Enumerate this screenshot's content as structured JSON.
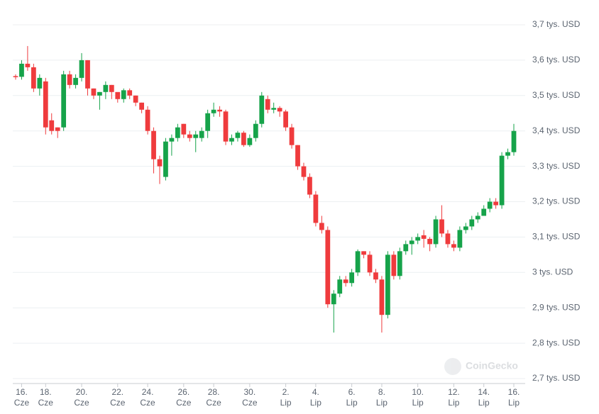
{
  "chart_data": {
    "type": "candlestick",
    "categories": [
      null,
      "16. Cze",
      null,
      null,
      null,
      "18. Cze",
      null,
      null,
      null,
      null,
      null,
      "20. Cze",
      null,
      null,
      null,
      null,
      null,
      "22. Cze",
      null,
      null,
      null,
      null,
      "24. Cze",
      null,
      null,
      null,
      null,
      null,
      "26. Cze",
      null,
      null,
      null,
      null,
      "28. Cze",
      null,
      null,
      null,
      null,
      null,
      "30. Cze",
      null,
      null,
      null,
      null,
      null,
      "2. Lip",
      null,
      null,
      null,
      null,
      "4. Lip",
      null,
      null,
      null,
      null,
      null,
      "6. Lip",
      null,
      null,
      null,
      null,
      "8. Lip",
      null,
      null,
      null,
      null,
      null,
      "10. Lip",
      null,
      null,
      null,
      null,
      null,
      "12. Lip",
      null,
      null,
      null,
      null,
      "14. Lip",
      null,
      null,
      null,
      null,
      "16. Lip"
    ],
    "open": [
      3.555,
      3.553,
      3.59,
      3.58,
      3.52,
      3.54,
      3.43,
      3.41,
      3.41,
      3.56,
      3.53,
      3.55,
      3.6,
      3.52,
      3.5,
      3.51,
      3.53,
      3.51,
      3.49,
      3.515,
      3.5,
      3.48,
      3.46,
      3.4,
      3.32,
      3.27,
      3.37,
      3.38,
      3.42,
      3.39,
      3.38,
      3.38,
      3.4,
      3.45,
      3.46,
      3.455,
      3.37,
      3.38,
      3.395,
      3.36,
      3.38,
      3.42,
      3.49,
      3.46,
      3.465,
      3.455,
      3.41,
      3.36,
      3.3,
      3.27,
      3.22,
      3.14,
      3.12,
      2.91,
      2.94,
      2.98,
      2.97,
      3.0,
      3.06,
      3.05,
      3.0,
      2.98,
      2.88,
      3.05,
      2.99,
      3.06,
      3.08,
      3.09,
      3.105,
      3.095,
      3.08,
      3.15,
      3.11,
      3.08,
      3.07,
      3.12,
      3.13,
      3.15,
      3.16,
      3.18,
      3.2,
      3.19,
      3.33,
      3.34
    ],
    "high": [
      3.56,
      3.6,
      3.64,
      3.59,
      3.56,
      3.55,
      3.45,
      3.41,
      3.57,
      3.57,
      3.56,
      3.62,
      3.6,
      3.52,
      3.51,
      3.54,
      3.53,
      3.5,
      3.52,
      3.52,
      3.5,
      3.48,
      3.47,
      3.41,
      3.33,
      3.38,
      3.39,
      3.42,
      3.42,
      3.4,
      3.4,
      3.41,
      3.46,
      3.48,
      3.47,
      3.46,
      3.39,
      3.4,
      3.4,
      3.39,
      3.43,
      3.51,
      3.5,
      3.48,
      3.47,
      3.46,
      3.42,
      3.36,
      3.31,
      3.28,
      3.23,
      3.16,
      3.13,
      2.95,
      2.99,
      2.99,
      3.01,
      3.065,
      3.06,
      3.06,
      3.01,
      2.99,
      3.06,
      3.06,
      3.07,
      3.09,
      3.1,
      3.11,
      3.12,
      3.1,
      3.16,
      3.19,
      3.12,
      3.09,
      3.13,
      3.14,
      3.16,
      3.17,
      3.19,
      3.21,
      3.21,
      3.34,
      3.35,
      3.42
    ],
    "low": [
      3.545,
      3.545,
      3.57,
      3.51,
      3.5,
      3.39,
      3.39,
      3.38,
      3.4,
      3.52,
      3.52,
      3.54,
      3.5,
      3.49,
      3.46,
      3.49,
      3.49,
      3.48,
      3.48,
      3.49,
      3.47,
      3.45,
      3.39,
      3.28,
      3.25,
      3.26,
      3.33,
      3.37,
      3.38,
      3.37,
      3.34,
      3.37,
      3.38,
      3.44,
      3.44,
      3.36,
      3.36,
      3.37,
      3.355,
      3.355,
      3.37,
      3.41,
      3.45,
      3.45,
      3.44,
      3.4,
      3.35,
      3.29,
      3.26,
      3.21,
      3.13,
      3.11,
      2.9,
      2.83,
      2.93,
      2.96,
      2.96,
      2.99,
      3.04,
      2.99,
      2.97,
      2.83,
      2.87,
      2.98,
      2.98,
      3.05,
      3.05,
      3.08,
      3.07,
      3.06,
      3.07,
      3.1,
      3.07,
      3.06,
      3.06,
      3.11,
      3.12,
      3.14,
      3.16,
      3.17,
      3.18,
      3.18,
      3.32,
      3.33
    ],
    "close": [
      3.553,
      3.59,
      3.58,
      3.52,
      3.55,
      3.41,
      3.4,
      3.4,
      3.56,
      3.53,
      3.55,
      3.6,
      3.52,
      3.5,
      3.51,
      3.53,
      3.51,
      3.49,
      3.515,
      3.5,
      3.48,
      3.46,
      3.4,
      3.32,
      3.3,
      3.37,
      3.38,
      3.41,
      3.39,
      3.38,
      3.39,
      3.4,
      3.45,
      3.46,
      3.455,
      3.37,
      3.38,
      3.395,
      3.36,
      3.38,
      3.42,
      3.5,
      3.46,
      3.465,
      3.455,
      3.41,
      3.36,
      3.3,
      3.27,
      3.22,
      3.14,
      3.12,
      2.91,
      2.94,
      2.98,
      2.97,
      3.0,
      3.06,
      3.05,
      3.0,
      2.98,
      2.88,
      3.05,
      2.99,
      3.06,
      3.08,
      3.09,
      3.1,
      3.095,
      3.08,
      3.15,
      3.11,
      3.08,
      3.07,
      3.12,
      3.13,
      3.15,
      3.16,
      3.18,
      3.2,
      3.19,
      3.33,
      3.34,
      3.4
    ],
    "up_color": "#16a34a",
    "down_color": "#ef3b3d",
    "ylim": [
      2.7,
      3.7
    ],
    "yticks": [
      {
        "value": 2.7,
        "label": "2,7 tys. USD"
      },
      {
        "value": 2.8,
        "label": "2,8 tys. USD"
      },
      {
        "value": 2.9,
        "label": "2,9 tys. USD"
      },
      {
        "value": 3,
        "label": "3 tys. USD"
      },
      {
        "value": 3.1,
        "label": "3,1 tys. USD"
      },
      {
        "value": 3.2,
        "label": "3,2 tys. USD"
      },
      {
        "value": 3.3,
        "label": "3,3 tys. USD"
      },
      {
        "value": 3.4,
        "label": "3,4 tys. USD"
      },
      {
        "value": 3.5,
        "label": "3,5 tys. USD"
      },
      {
        "value": 3.6,
        "label": "3,6 tys. USD"
      },
      {
        "value": 3.7,
        "label": "3,7 tys. USD"
      }
    ],
    "grid": true,
    "watermark": "CoinGecko"
  }
}
